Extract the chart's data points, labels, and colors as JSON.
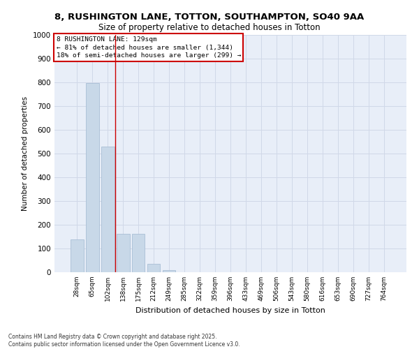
{
  "title": "8, RUSHINGTON LANE, TOTTON, SOUTHAMPTON, SO40 9AA",
  "subtitle": "Size of property relative to detached houses in Totton",
  "xlabel": "Distribution of detached houses by size in Totton",
  "ylabel": "Number of detached properties",
  "categories": [
    "28sqm",
    "65sqm",
    "102sqm",
    "138sqm",
    "175sqm",
    "212sqm",
    "249sqm",
    "285sqm",
    "322sqm",
    "359sqm",
    "396sqm",
    "433sqm",
    "469sqm",
    "506sqm",
    "543sqm",
    "580sqm",
    "616sqm",
    "653sqm",
    "690sqm",
    "727sqm",
    "764sqm"
  ],
  "values": [
    137,
    796,
    530,
    162,
    162,
    35,
    8,
    0,
    0,
    0,
    0,
    0,
    0,
    0,
    0,
    0,
    0,
    0,
    0,
    0,
    0
  ],
  "bar_color": "#c8d8e8",
  "bar_edge_color": "#a0b8d0",
  "grid_color": "#d0d8e8",
  "background_color": "#e8eef8",
  "annotation_box_color": "#ffffff",
  "annotation_border_color": "#cc0000",
  "annotation_text_line1": "8 RUSHINGTON LANE: 129sqm",
  "annotation_text_line2": "← 81% of detached houses are smaller (1,344)",
  "annotation_text_line3": "18% of semi-detached houses are larger (299) →",
  "red_line_x": 2.5,
  "ylim": [
    0,
    1000
  ],
  "yticks": [
    0,
    100,
    200,
    300,
    400,
    500,
    600,
    700,
    800,
    900,
    1000
  ],
  "footer_line1": "Contains HM Land Registry data © Crown copyright and database right 2025.",
  "footer_line2": "Contains public sector information licensed under the Open Government Licence v3.0."
}
